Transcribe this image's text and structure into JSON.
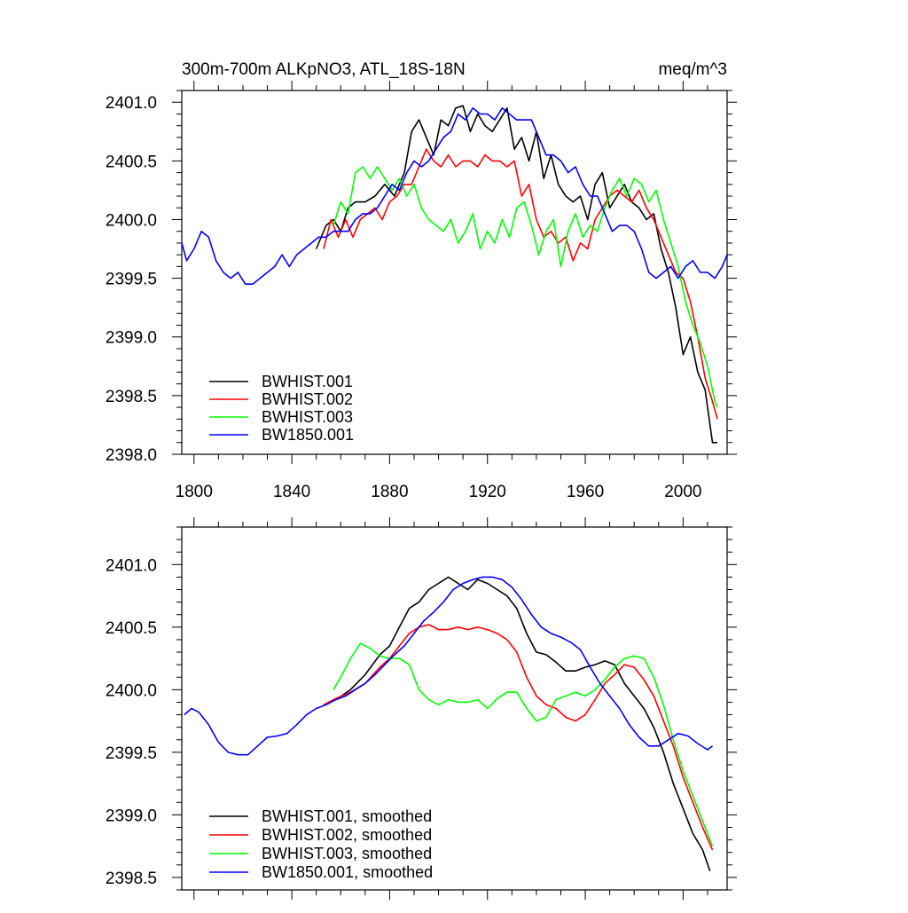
{
  "chart_data": [
    {
      "type": "line",
      "title_left": "300m-700m ALKpNO3, ATL_18S-18N",
      "title_right": "meq/m^3",
      "xlabel": "",
      "ylabel": "",
      "xlim": [
        1795,
        2018
      ],
      "ylim": [
        2398.0,
        2401.1
      ],
      "xticks": [
        1800,
        1840,
        1880,
        1920,
        1960,
        2000
      ],
      "xtick_labels": [
        "1800",
        "1840",
        "1880",
        "1920",
        "1960",
        "2000"
      ],
      "yticks": [
        2398.0,
        2398.5,
        2399.0,
        2399.5,
        2400.0,
        2400.5,
        2401.0
      ],
      "ytick_labels": [
        "2398.0",
        "2398.5",
        "2399.0",
        "2399.5",
        "2400.0",
        "2400.5",
        "2401.0"
      ],
      "legend": "lower-left",
      "series": [
        {
          "name": "BWHIST.001",
          "color": "#000000",
          "x": [
            1850,
            1854,
            1857,
            1860,
            1863,
            1866,
            1870,
            1874,
            1878,
            1882,
            1886,
            1889,
            1892,
            1895,
            1898,
            1901,
            1904,
            1907,
            1910,
            1913,
            1916,
            1919,
            1922,
            1925,
            1928,
            1931,
            1934,
            1937,
            1940,
            1943,
            1946,
            1949,
            1952,
            1955,
            1958,
            1961,
            1964,
            1967,
            1970,
            1973,
            1976,
            1979,
            1982,
            1985,
            1988,
            1991,
            1994,
            1997,
            2000,
            2003,
            2006,
            2009,
            2012,
            2014
          ],
          "y": [
            2399.75,
            2399.95,
            2400.0,
            2399.9,
            2400.1,
            2400.15,
            2400.15,
            2400.2,
            2400.3,
            2400.2,
            2400.4,
            2400.75,
            2400.85,
            2400.7,
            2400.55,
            2400.85,
            2400.8,
            2400.95,
            2400.97,
            2400.75,
            2400.9,
            2400.8,
            2400.75,
            2400.85,
            2400.95,
            2400.6,
            2400.7,
            2400.5,
            2400.75,
            2400.35,
            2400.55,
            2400.3,
            2400.2,
            2400.15,
            2400.2,
            2400.0,
            2400.3,
            2400.4,
            2400.1,
            2400.2,
            2400.3,
            2400.15,
            2400.1,
            2400.0,
            2400.05,
            2399.75,
            2399.55,
            2399.25,
            2398.85,
            2399.0,
            2398.7,
            2398.55,
            2398.1,
            2398.1
          ]
        },
        {
          "name": "BWHIST.002",
          "color": "#ff0000",
          "x": [
            1853,
            1856,
            1859,
            1862,
            1865,
            1868,
            1871,
            1874,
            1877,
            1880,
            1883,
            1886,
            1889,
            1892,
            1895,
            1898,
            1901,
            1904,
            1907,
            1910,
            1913,
            1916,
            1919,
            1922,
            1925,
            1928,
            1931,
            1934,
            1937,
            1940,
            1943,
            1946,
            1949,
            1952,
            1955,
            1958,
            1961,
            1964,
            1967,
            1970,
            1973,
            1976,
            1979,
            1982,
            1985,
            1988,
            1991,
            1994,
            1997,
            2000,
            2003,
            2006,
            2009,
            2012,
            2014
          ],
          "y": [
            2399.75,
            2400.0,
            2399.85,
            2400.0,
            2399.85,
            2400.0,
            2400.05,
            2400.1,
            2400.0,
            2400.15,
            2400.2,
            2400.3,
            2400.3,
            2400.45,
            2400.6,
            2400.5,
            2400.45,
            2400.55,
            2400.45,
            2400.5,
            2400.5,
            2400.45,
            2400.55,
            2400.5,
            2400.5,
            2400.45,
            2400.5,
            2400.2,
            2400.3,
            2400.0,
            2399.85,
            2399.9,
            2399.8,
            2399.85,
            2399.65,
            2399.8,
            2399.75,
            2400.0,
            2400.1,
            2400.2,
            2400.25,
            2400.2,
            2400.15,
            2400.25,
            2400.1,
            2400.0,
            2399.85,
            2399.7,
            2399.55,
            2399.5,
            2399.3,
            2399.0,
            2398.65,
            2398.45,
            2398.3
          ]
        },
        {
          "name": "BWHIST.003",
          "color": "#00ff00",
          "x": [
            1857,
            1860,
            1863,
            1866,
            1869,
            1872,
            1875,
            1878,
            1881,
            1884,
            1887,
            1890,
            1893,
            1896,
            1899,
            1902,
            1905,
            1908,
            1911,
            1914,
            1917,
            1920,
            1923,
            1926,
            1929,
            1932,
            1935,
            1938,
            1941,
            1944,
            1947,
            1950,
            1953,
            1956,
            1959,
            1962,
            1965,
            1968,
            1971,
            1974,
            1977,
            1980,
            1983,
            1986,
            1989,
            1992,
            1995,
            1998,
            2001,
            2004,
            2007,
            2010,
            2013,
            2014
          ],
          "y": [
            2399.95,
            2400.15,
            2400.05,
            2400.4,
            2400.45,
            2400.35,
            2400.45,
            2400.35,
            2400.25,
            2400.35,
            2400.2,
            2400.3,
            2400.1,
            2400.0,
            2399.95,
            2399.9,
            2400.0,
            2399.8,
            2399.9,
            2400.05,
            2399.75,
            2399.9,
            2399.8,
            2400.0,
            2399.85,
            2400.1,
            2400.15,
            2399.95,
            2399.7,
            2399.9,
            2400.0,
            2399.6,
            2399.9,
            2400.05,
            2399.85,
            2399.95,
            2399.9,
            2400.1,
            2400.25,
            2400.35,
            2400.2,
            2400.35,
            2400.3,
            2400.15,
            2400.25,
            2400.0,
            2399.8,
            2399.6,
            2399.3,
            2399.1,
            2398.95,
            2398.75,
            2398.45,
            2398.4
          ]
        },
        {
          "name": "BW1850.001",
          "color": "#0000ff",
          "x": [
            1795,
            1797,
            1800,
            1803,
            1806,
            1809,
            1812,
            1815,
            1818,
            1821,
            1824,
            1827,
            1830,
            1833,
            1836,
            1839,
            1842,
            1845,
            1848,
            1851,
            1854,
            1857,
            1860,
            1863,
            1866,
            1869,
            1872,
            1875,
            1878,
            1881,
            1884,
            1887,
            1890,
            1893,
            1896,
            1899,
            1902,
            1905,
            1908,
            1911,
            1914,
            1917,
            1920,
            1923,
            1926,
            1929,
            1932,
            1935,
            1938,
            1941,
            1944,
            1947,
            1950,
            1953,
            1956,
            1959,
            1962,
            1965,
            1968,
            1971,
            1974,
            1977,
            1980,
            1983,
            1986,
            1989,
            1992,
            1995,
            1998,
            2001,
            2004,
            2007,
            2010,
            2013,
            2016,
            2018
          ],
          "y": [
            2399.8,
            2399.65,
            2399.75,
            2399.9,
            2399.85,
            2399.65,
            2399.55,
            2399.5,
            2399.55,
            2399.45,
            2399.45,
            2399.5,
            2399.55,
            2399.6,
            2399.7,
            2399.6,
            2399.7,
            2399.75,
            2399.8,
            2399.85,
            2399.85,
            2399.9,
            2399.9,
            2399.9,
            2400.0,
            2400.05,
            2400.05,
            2400.1,
            2400.2,
            2400.3,
            2400.25,
            2400.4,
            2400.5,
            2400.45,
            2400.5,
            2400.6,
            2400.7,
            2400.75,
            2400.9,
            2400.85,
            2400.95,
            2400.9,
            2400.9,
            2400.85,
            2400.95,
            2400.9,
            2400.85,
            2400.85,
            2400.85,
            2400.7,
            2400.55,
            2400.55,
            2400.5,
            2400.4,
            2400.45,
            2400.3,
            2400.2,
            2400.2,
            2400.05,
            2399.9,
            2399.95,
            2399.95,
            2399.9,
            2399.75,
            2399.55,
            2399.5,
            2399.55,
            2399.6,
            2399.5,
            2399.6,
            2399.65,
            2399.55,
            2399.55,
            2399.5,
            2399.6,
            2399.7
          ]
        }
      ]
    },
    {
      "type": "line",
      "title_left": "",
      "title_right": "",
      "xlabel": "",
      "ylabel": "",
      "xlim": [
        1795,
        2018
      ],
      "ylim": [
        2398.4,
        2401.3
      ],
      "xticks": [
        1800,
        1840,
        1880,
        1920,
        1960,
        2000
      ],
      "xtick_labels": [],
      "yticks": [
        2398.5,
        2399.0,
        2399.5,
        2400.0,
        2400.5,
        2401.0
      ],
      "ytick_labels": [
        "2398.5",
        "2399.0",
        "2399.5",
        "2400.0",
        "2400.5",
        "2401.0"
      ],
      "legend": "lower-left",
      "series": [
        {
          "name": "BWHIST.001, smoothed",
          "color": "#000000",
          "x": [
            1853,
            1858,
            1864,
            1870,
            1876,
            1880,
            1884,
            1888,
            1892,
            1896,
            1900,
            1904,
            1908,
            1912,
            1916,
            1920,
            1924,
            1928,
            1932,
            1936,
            1940,
            1944,
            1948,
            1952,
            1956,
            1960,
            1964,
            1968,
            1972,
            1976,
            1980,
            1984,
            1988,
            1992,
            1996,
            2000,
            2004,
            2008,
            2011
          ],
          "y": [
            2399.88,
            2399.92,
            2400.0,
            2400.12,
            2400.28,
            2400.35,
            2400.5,
            2400.65,
            2400.7,
            2400.8,
            2400.85,
            2400.9,
            2400.85,
            2400.8,
            2400.88,
            2400.85,
            2400.8,
            2400.75,
            2400.65,
            2400.45,
            2400.3,
            2400.28,
            2400.22,
            2400.15,
            2400.15,
            2400.18,
            2400.2,
            2400.23,
            2400.2,
            2400.05,
            2399.95,
            2399.85,
            2399.7,
            2399.5,
            2399.25,
            2399.05,
            2398.85,
            2398.72,
            2398.55
          ]
        },
        {
          "name": "BWHIST.002, smoothed",
          "color": "#ff0000",
          "x": [
            1853,
            1858,
            1864,
            1870,
            1876,
            1880,
            1884,
            1888,
            1892,
            1896,
            1900,
            1904,
            1908,
            1912,
            1916,
            1920,
            1924,
            1928,
            1932,
            1936,
            1940,
            1944,
            1948,
            1952,
            1956,
            1960,
            1964,
            1968,
            1972,
            1976,
            1980,
            1984,
            1988,
            1992,
            1996,
            2000,
            2004,
            2008,
            2012
          ],
          "y": [
            2399.88,
            2399.93,
            2399.98,
            2400.05,
            2400.18,
            2400.25,
            2400.35,
            2400.45,
            2400.5,
            2400.52,
            2400.48,
            2400.48,
            2400.5,
            2400.48,
            2400.5,
            2400.48,
            2400.45,
            2400.4,
            2400.3,
            2400.1,
            2399.95,
            2399.88,
            2399.85,
            2399.78,
            2399.75,
            2399.8,
            2399.92,
            2400.05,
            2400.12,
            2400.2,
            2400.18,
            2400.08,
            2399.95,
            2399.75,
            2399.55,
            2399.3,
            2399.1,
            2398.9,
            2398.72
          ]
        },
        {
          "name": "BWHIST.003, smoothed",
          "color": "#00ff00",
          "x": [
            1857,
            1860,
            1864,
            1868,
            1872,
            1876,
            1880,
            1884,
            1888,
            1892,
            1896,
            1900,
            1904,
            1908,
            1912,
            1916,
            1920,
            1924,
            1928,
            1932,
            1936,
            1940,
            1944,
            1948,
            1952,
            1956,
            1960,
            1964,
            1968,
            1972,
            1976,
            1980,
            1984,
            1988,
            1992,
            1996,
            2000,
            2004,
            2008,
            2012
          ],
          "y": [
            2400.0,
            2400.1,
            2400.25,
            2400.37,
            2400.33,
            2400.27,
            2400.25,
            2400.25,
            2400.2,
            2400.0,
            2399.92,
            2399.88,
            2399.92,
            2399.9,
            2399.9,
            2399.92,
            2399.85,
            2399.93,
            2399.98,
            2399.98,
            2399.85,
            2399.75,
            2399.78,
            2399.92,
            2399.95,
            2399.98,
            2399.95,
            2400.0,
            2400.08,
            2400.18,
            2400.25,
            2400.27,
            2400.25,
            2400.1,
            2399.88,
            2399.6,
            2399.35,
            2399.15,
            2398.95,
            2398.75
          ]
        },
        {
          "name": "BW1850.001, smoothed",
          "color": "#0000ff",
          "x": [
            1796,
            1799,
            1802,
            1806,
            1810,
            1814,
            1818,
            1822,
            1826,
            1830,
            1834,
            1838,
            1842,
            1846,
            1850,
            1854,
            1858,
            1862,
            1866,
            1870,
            1874,
            1878,
            1882,
            1886,
            1890,
            1894,
            1898,
            1902,
            1906,
            1910,
            1914,
            1918,
            1922,
            1926,
            1930,
            1934,
            1938,
            1942,
            1946,
            1950,
            1954,
            1958,
            1962,
            1966,
            1970,
            1974,
            1978,
            1982,
            1986,
            1990,
            1994,
            1998,
            2002,
            2006,
            2010,
            2012
          ],
          "y": [
            2399.8,
            2399.85,
            2399.82,
            2399.72,
            2399.58,
            2399.5,
            2399.48,
            2399.48,
            2399.55,
            2399.62,
            2399.63,
            2399.65,
            2399.72,
            2399.8,
            2399.85,
            2399.88,
            2399.92,
            2399.95,
            2400.0,
            2400.05,
            2400.12,
            2400.2,
            2400.28,
            2400.35,
            2400.45,
            2400.55,
            2400.62,
            2400.7,
            2400.8,
            2400.85,
            2400.88,
            2400.9,
            2400.9,
            2400.88,
            2400.82,
            2400.72,
            2400.6,
            2400.5,
            2400.45,
            2400.42,
            2400.38,
            2400.32,
            2400.18,
            2400.05,
            2399.95,
            2399.85,
            2399.72,
            2399.62,
            2399.55,
            2399.55,
            2399.6,
            2399.65,
            2399.63,
            2399.57,
            2399.52,
            2399.55
          ]
        }
      ]
    }
  ]
}
